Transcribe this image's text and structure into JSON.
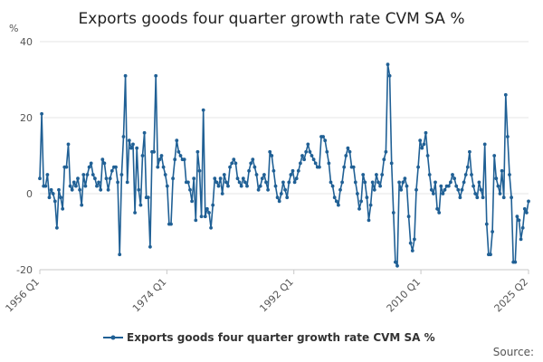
{
  "chart_data": {
    "type": "line",
    "title": "Exports goods four quarter growth rate CVM SA %",
    "ylabel": "%",
    "ylim": [
      -20,
      40
    ],
    "yticks": [
      -20,
      0,
      20,
      40
    ],
    "xticks": [
      "1956 Q1",
      "1974 Q1",
      "1992 Q1",
      "2010 Q1",
      "2025 Q2"
    ],
    "start": "1956 Q1",
    "end": "2025 Q2",
    "legend_position": "bottom",
    "source_label": "Source:",
    "series_color": "#206095",
    "series": [
      {
        "name": "Exports goods four quarter growth rate CVM SA %",
        "values": [
          4,
          21,
          2,
          2,
          5,
          -1,
          1,
          0,
          -2,
          -9,
          1,
          -1,
          -4,
          7,
          7,
          13,
          2,
          1,
          3,
          2,
          4,
          1,
          -3,
          5,
          2,
          5,
          7,
          8,
          5,
          4,
          2,
          3,
          1,
          9,
          8,
          4,
          1,
          4,
          6,
          7,
          7,
          3,
          -16,
          5,
          15,
          31,
          3,
          14,
          12,
          13,
          -5,
          12,
          1,
          -3,
          10,
          16,
          -1,
          -1,
          -14,
          11,
          11,
          31,
          7,
          9,
          10,
          7,
          5,
          2,
          -8,
          -8,
          4,
          9,
          14,
          11,
          10,
          9,
          9,
          3,
          3,
          1,
          -2,
          4,
          -7,
          11,
          6,
          -6,
          22,
          -6,
          -4,
          -5,
          -9,
          -3,
          4,
          3,
          2,
          4,
          0,
          5,
          3,
          2,
          7,
          8,
          9,
          8,
          4,
          3,
          2,
          4,
          3,
          2,
          6,
          8,
          9,
          7,
          5,
          1,
          2,
          4,
          5,
          3,
          1,
          11,
          10,
          6,
          2,
          -1,
          -2,
          0,
          3,
          1,
          -1,
          3,
          5,
          6,
          3,
          4,
          6,
          8,
          10,
          9,
          11,
          13,
          11,
          10,
          9,
          8,
          7,
          7,
          15,
          15,
          14,
          11,
          8,
          3,
          2,
          -1,
          -2,
          -3,
          1,
          3,
          7,
          10,
          12,
          11,
          7,
          7,
          3,
          0,
          -4,
          -2,
          5,
          3,
          -1,
          -7,
          -3,
          3,
          1,
          5,
          3,
          2,
          5,
          9,
          11,
          34,
          31,
          8,
          -5,
          -18,
          -19,
          3,
          1,
          3,
          4,
          2,
          -6,
          -13,
          -15,
          -12,
          1,
          7,
          14,
          12,
          13,
          16,
          10,
          5,
          1,
          0,
          3,
          -4,
          -5,
          2,
          0,
          1,
          2,
          2,
          3,
          5,
          4,
          2,
          1,
          -1,
          1,
          3,
          5,
          7,
          11,
          5,
          2,
          0,
          -1,
          3,
          1,
          -1,
          13,
          -8,
          -16,
          -16,
          -10,
          10,
          4,
          2,
          0,
          6,
          -1,
          26,
          15,
          5,
          -1,
          -18,
          -18,
          -6,
          -7,
          -12,
          -9,
          -4,
          -5,
          -2
        ]
      }
    ]
  }
}
